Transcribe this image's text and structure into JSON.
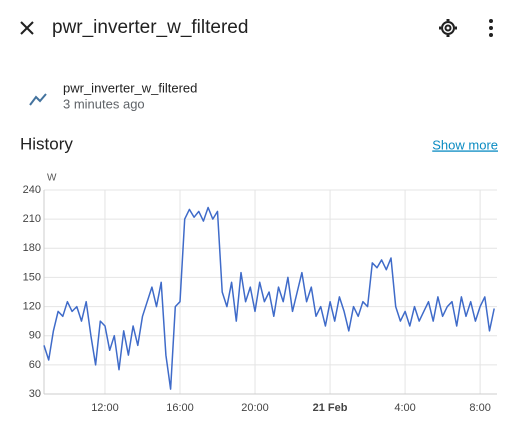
{
  "header": {
    "title": "pwr_inverter_w_filtered"
  },
  "entity": {
    "name": "pwr_inverter_w_filtered",
    "last_changed": "3 minutes ago"
  },
  "history": {
    "title": "History",
    "show_more": "Show more"
  },
  "chart_data": {
    "type": "line",
    "y_unit": "W",
    "color": "#3f6bc9",
    "grid": true,
    "ylim": [
      30,
      240
    ],
    "yticks": [
      30,
      60,
      90,
      120,
      150,
      180,
      210,
      240
    ],
    "xlim": [
      8.75,
      32.9
    ],
    "xticks": [
      {
        "value": 12,
        "label": "12:00"
      },
      {
        "value": 16,
        "label": "16:00"
      },
      {
        "value": 20,
        "label": "20:00"
      },
      {
        "value": 24,
        "label": "21 Feb",
        "bold": true
      },
      {
        "value": 28,
        "label": "4:00"
      },
      {
        "value": 32,
        "label": "8:00"
      }
    ],
    "x": [
      8.75,
      9,
      9.25,
      9.5,
      9.75,
      10,
      10.25,
      10.5,
      10.75,
      11,
      11.25,
      11.5,
      11.75,
      12,
      12.25,
      12.5,
      12.75,
      13,
      13.25,
      13.5,
      13.75,
      14,
      14.25,
      14.5,
      14.75,
      15,
      15.25,
      15.5,
      15.75,
      16,
      16.25,
      16.5,
      16.75,
      17,
      17.25,
      17.5,
      17.75,
      18,
      18.25,
      18.5,
      18.75,
      19,
      19.25,
      19.5,
      19.75,
      20,
      20.25,
      20.5,
      20.75,
      21,
      21.25,
      21.5,
      21.75,
      22,
      22.25,
      22.5,
      22.75,
      23,
      23.25,
      23.5,
      23.75,
      24,
      24.25,
      24.5,
      24.75,
      25,
      25.25,
      25.5,
      25.75,
      26,
      26.25,
      26.5,
      26.75,
      27,
      27.25,
      27.5,
      27.75,
      28,
      28.25,
      28.5,
      28.75,
      29,
      29.25,
      29.5,
      29.75,
      30,
      30.25,
      30.5,
      30.75,
      31,
      31.25,
      31.5,
      31.75,
      32,
      32.25,
      32.5,
      32.75
    ],
    "values": [
      80,
      65,
      95,
      115,
      110,
      125,
      115,
      120,
      105,
      125,
      90,
      60,
      105,
      100,
      75,
      90,
      55,
      95,
      70,
      100,
      80,
      110,
      125,
      140,
      120,
      145,
      70,
      35,
      120,
      125,
      210,
      220,
      212,
      218,
      208,
      222,
      210,
      218,
      135,
      120,
      145,
      105,
      155,
      125,
      140,
      115,
      145,
      125,
      135,
      110,
      140,
      125,
      150,
      115,
      135,
      155,
      125,
      140,
      110,
      120,
      100,
      125,
      105,
      130,
      115,
      95,
      120,
      110,
      125,
      120,
      165,
      160,
      168,
      158,
      170,
      120,
      105,
      115,
      100,
      120,
      105,
      115,
      125,
      105,
      130,
      110,
      120,
      125,
      100,
      130,
      110,
      125,
      105,
      120,
      130,
      95,
      118
    ]
  }
}
